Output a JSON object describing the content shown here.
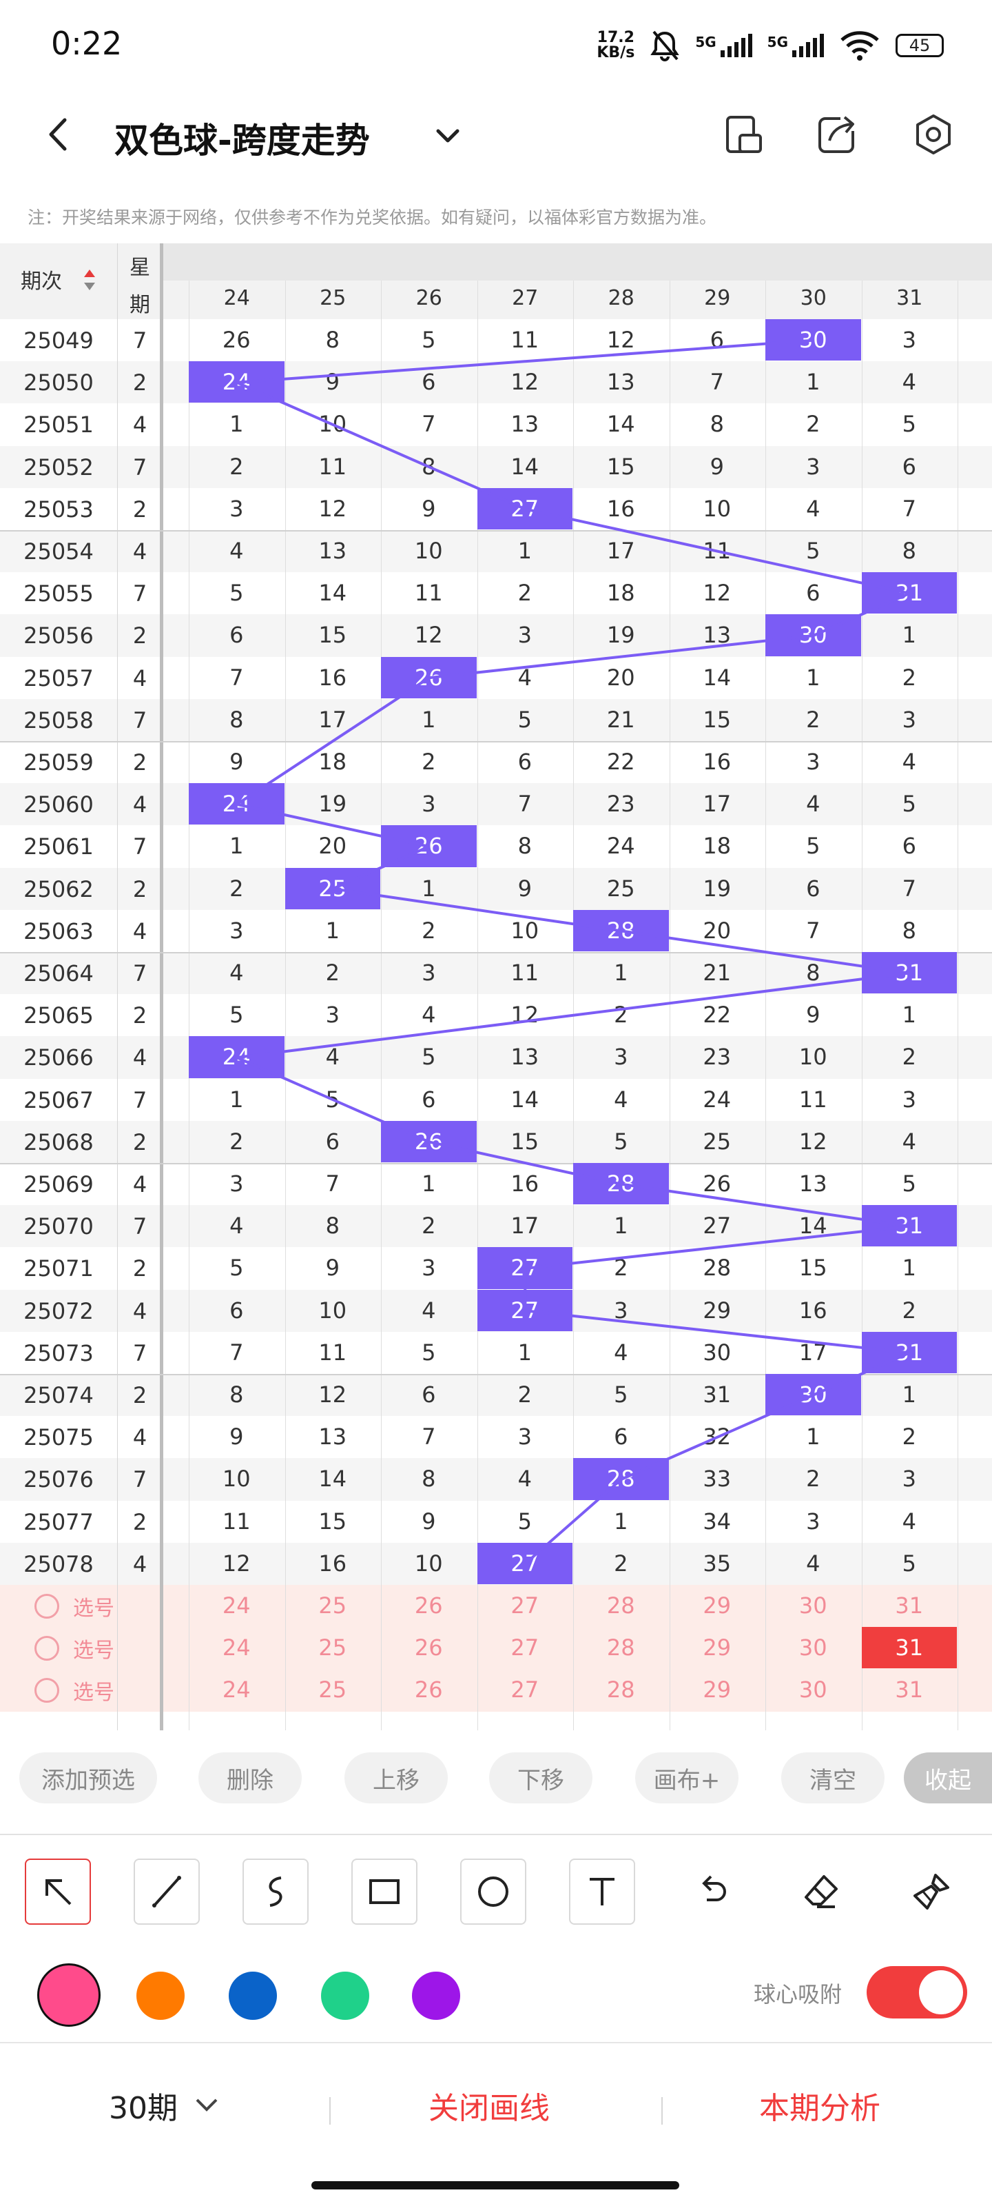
{
  "status_bar": {
    "time": "0:22",
    "net_speed_top": "17.2",
    "net_speed_bottom": "KB/s",
    "sig1": "5G",
    "sig2": "5G",
    "battery": "45"
  },
  "header": {
    "title": "双色球-跨度走势"
  },
  "note": "注：开奖结果来源于网络，仅供参考不作为兑奖依据。如有疑问，以福体彩官方数据为准。",
  "table": {
    "col_period": "期次",
    "col_week_top": "星",
    "col_week_bottom": "期",
    "cols": [
      "24",
      "25",
      "26",
      "27",
      "28",
      "29",
      "30",
      "31"
    ],
    "rows": [
      {
        "period": "25049",
        "week": "7",
        "vals": [
          "26",
          "8",
          "5",
          "11",
          "12",
          "6",
          "30",
          "3"
        ],
        "hit": 6
      },
      {
        "period": "25050",
        "week": "2",
        "vals": [
          "24",
          "9",
          "6",
          "12",
          "13",
          "7",
          "1",
          "4"
        ],
        "hit": 0
      },
      {
        "period": "25051",
        "week": "4",
        "vals": [
          "1",
          "10",
          "7",
          "13",
          "14",
          "8",
          "2",
          "5"
        ],
        "hit": -1
      },
      {
        "period": "25052",
        "week": "7",
        "vals": [
          "2",
          "11",
          "8",
          "14",
          "15",
          "9",
          "3",
          "6"
        ],
        "hit": -1
      },
      {
        "period": "25053",
        "week": "2",
        "vals": [
          "3",
          "12",
          "9",
          "27",
          "16",
          "10",
          "4",
          "7"
        ],
        "hit": 3
      },
      {
        "period": "25054",
        "week": "4",
        "vals": [
          "4",
          "13",
          "10",
          "1",
          "17",
          "11",
          "5",
          "8"
        ],
        "hit": -1
      },
      {
        "period": "25055",
        "week": "7",
        "vals": [
          "5",
          "14",
          "11",
          "2",
          "18",
          "12",
          "6",
          "31"
        ],
        "hit": 7
      },
      {
        "period": "25056",
        "week": "2",
        "vals": [
          "6",
          "15",
          "12",
          "3",
          "19",
          "13",
          "30",
          "1"
        ],
        "hit": 6
      },
      {
        "period": "25057",
        "week": "4",
        "vals": [
          "7",
          "16",
          "26",
          "4",
          "20",
          "14",
          "1",
          "2"
        ],
        "hit": 2
      },
      {
        "period": "25058",
        "week": "7",
        "vals": [
          "8",
          "17",
          "1",
          "5",
          "21",
          "15",
          "2",
          "3"
        ],
        "hit": -1
      },
      {
        "period": "25059",
        "week": "2",
        "vals": [
          "9",
          "18",
          "2",
          "6",
          "22",
          "16",
          "3",
          "4"
        ],
        "hit": -1
      },
      {
        "period": "25060",
        "week": "4",
        "vals": [
          "24",
          "19",
          "3",
          "7",
          "23",
          "17",
          "4",
          "5"
        ],
        "hit": 0
      },
      {
        "period": "25061",
        "week": "7",
        "vals": [
          "1",
          "20",
          "26",
          "8",
          "24",
          "18",
          "5",
          "6"
        ],
        "hit": 2
      },
      {
        "period": "25062",
        "week": "2",
        "vals": [
          "2",
          "25",
          "1",
          "9",
          "25",
          "19",
          "6",
          "7"
        ],
        "hit": 1
      },
      {
        "period": "25063",
        "week": "4",
        "vals": [
          "3",
          "1",
          "2",
          "10",
          "28",
          "20",
          "7",
          "8"
        ],
        "hit": 4
      },
      {
        "period": "25064",
        "week": "7",
        "vals": [
          "4",
          "2",
          "3",
          "11",
          "1",
          "21",
          "8",
          "31"
        ],
        "hit": 7
      },
      {
        "period": "25065",
        "week": "2",
        "vals": [
          "5",
          "3",
          "4",
          "12",
          "2",
          "22",
          "9",
          "1"
        ],
        "hit": -1
      },
      {
        "period": "25066",
        "week": "4",
        "vals": [
          "24",
          "4",
          "5",
          "13",
          "3",
          "23",
          "10",
          "2"
        ],
        "hit": 0
      },
      {
        "period": "25067",
        "week": "7",
        "vals": [
          "1",
          "5",
          "6",
          "14",
          "4",
          "24",
          "11",
          "3"
        ],
        "hit": -1
      },
      {
        "period": "25068",
        "week": "2",
        "vals": [
          "2",
          "6",
          "26",
          "15",
          "5",
          "25",
          "12",
          "4"
        ],
        "hit": 2
      },
      {
        "period": "25069",
        "week": "4",
        "vals": [
          "3",
          "7",
          "1",
          "16",
          "28",
          "26",
          "13",
          "5"
        ],
        "hit": 4
      },
      {
        "period": "25070",
        "week": "7",
        "vals": [
          "4",
          "8",
          "2",
          "17",
          "1",
          "27",
          "14",
          "31"
        ],
        "hit": 7
      },
      {
        "period": "25071",
        "week": "2",
        "vals": [
          "5",
          "9",
          "3",
          "27",
          "2",
          "28",
          "15",
          "1"
        ],
        "hit": 3
      },
      {
        "period": "25072",
        "week": "4",
        "vals": [
          "6",
          "10",
          "4",
          "27",
          "3",
          "29",
          "16",
          "2"
        ],
        "hit": 3
      },
      {
        "period": "25073",
        "week": "7",
        "vals": [
          "7",
          "11",
          "5",
          "1",
          "4",
          "30",
          "17",
          "31"
        ],
        "hit": 7
      },
      {
        "period": "25074",
        "week": "2",
        "vals": [
          "8",
          "12",
          "6",
          "2",
          "5",
          "31",
          "30",
          "1"
        ],
        "hit": 6
      },
      {
        "period": "25075",
        "week": "4",
        "vals": [
          "9",
          "13",
          "7",
          "3",
          "6",
          "32",
          "1",
          "2"
        ],
        "hit": -1
      },
      {
        "period": "25076",
        "week": "7",
        "vals": [
          "10",
          "14",
          "8",
          "4",
          "28",
          "33",
          "2",
          "3"
        ],
        "hit": 4
      },
      {
        "period": "25077",
        "week": "2",
        "vals": [
          "11",
          "15",
          "9",
          "5",
          "1",
          "34",
          "3",
          "4"
        ],
        "hit": -1
      },
      {
        "period": "25078",
        "week": "4",
        "vals": [
          "12",
          "16",
          "10",
          "27",
          "2",
          "35",
          "4",
          "5"
        ],
        "hit": 3
      }
    ],
    "select_rows": [
      {
        "label": "选号",
        "vals": [
          "24",
          "25",
          "26",
          "27",
          "28",
          "29",
          "30",
          "31"
        ],
        "hit": -1
      },
      {
        "label": "选号",
        "vals": [
          "24",
          "25",
          "26",
          "27",
          "28",
          "29",
          "30",
          "31"
        ],
        "hit": 7
      },
      {
        "label": "选号",
        "vals": [
          "24",
          "25",
          "26",
          "27",
          "28",
          "29",
          "30",
          "31"
        ],
        "hit": -1
      }
    ]
  },
  "actions": {
    "add": "添加预选",
    "delete": "删除",
    "up": "上移",
    "down": "下移",
    "canvas": "画布+",
    "clear": "清空",
    "collapse": "收起"
  },
  "tools": [
    "pointer-icon",
    "line-icon",
    "curve-icon",
    "rectangle-icon",
    "circle-icon",
    "text-icon",
    "undo-icon",
    "eraser-icon",
    "clear-all-icon"
  ],
  "colors": {
    "pink": "#ff4b8b",
    "orange": "#ff7a00",
    "blue": "#0a63c9",
    "green": "#1fd18a",
    "purple": "#9d16e8",
    "hit": "#7b5cf5",
    "accent": "#f13d3d"
  },
  "snap_label": "球心吸附",
  "snap_on": true,
  "footer": {
    "periods": "30期",
    "close_lines": "关闭画线",
    "analysis": "本期分析"
  }
}
